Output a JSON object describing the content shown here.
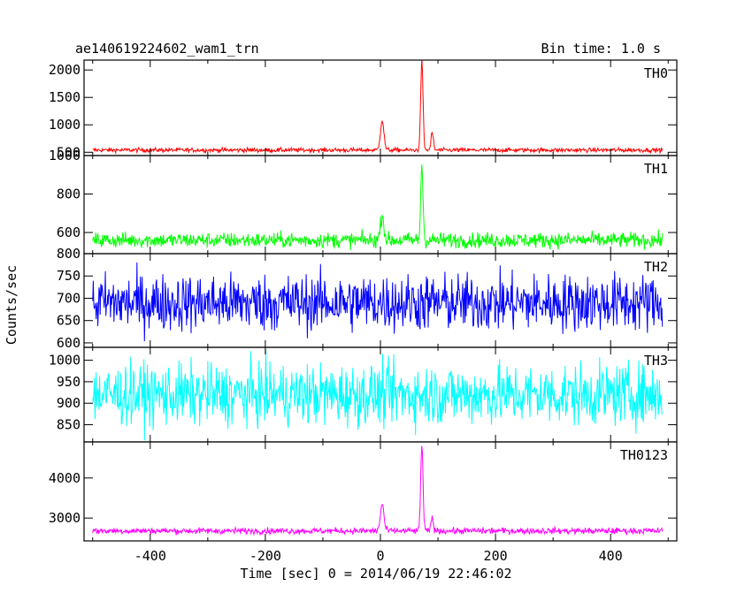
{
  "chart_data": {
    "type": "line",
    "title": "ae140619224602_wam1_trn",
    "subtitle": "Bin time: 1.0 s",
    "xlabel": "Time [sec] 0 = 2014/06/19 22:46:02",
    "ylabel": "Counts/sec",
    "xlim": [
      -515,
      515
    ],
    "x_ticks": [
      -400,
      -200,
      0,
      200,
      400
    ],
    "x_range": [
      -500,
      490
    ],
    "bin_time": 1.0,
    "grid": false,
    "panels": [
      {
        "name": "TH0",
        "color": "#ff0000",
        "ylim": [
          440,
          2180
        ],
        "ticks": [
          500,
          1000,
          1500,
          2000
        ],
        "baseline": 540,
        "noise": 28,
        "peaks": [
          {
            "x": 3,
            "value": 1080,
            "width": 3
          },
          {
            "x": 72,
            "value": 2180,
            "width": 2
          },
          {
            "x": 90,
            "value": 860,
            "width": 2
          }
        ]
      },
      {
        "name": "TH1",
        "color": "#00ff00",
        "ylim": [
          490,
          1000
        ],
        "ticks": [
          600,
          800,
          1000
        ],
        "baseline": 560,
        "noise": 28,
        "peaks": [
          {
            "x": 3,
            "value": 690,
            "width": 3
          },
          {
            "x": 72,
            "value": 950,
            "width": 2
          }
        ]
      },
      {
        "name": "TH2",
        "color": "#0000ff",
        "ylim": [
          590,
          800
        ],
        "ticks": [
          600,
          650,
          700,
          750,
          800
        ],
        "baseline": 690,
        "noise": 45,
        "peaks": []
      },
      {
        "name": "TH3",
        "color": "#00ffff",
        "ylim": [
          810,
          1030
        ],
        "ticks": [
          850,
          900,
          950,
          1000
        ],
        "baseline": 920,
        "noise": 50,
        "peaks": []
      },
      {
        "name": "TH0123",
        "color": "#ff00ff",
        "ylim": [
          2430,
          4900
        ],
        "ticks": [
          3000,
          4000
        ],
        "baseline": 2680,
        "noise": 55,
        "peaks": [
          {
            "x": 3,
            "value": 3350,
            "width": 3
          },
          {
            "x": 72,
            "value": 4850,
            "width": 2
          },
          {
            "x": 90,
            "value": 3000,
            "width": 2
          }
        ]
      }
    ]
  }
}
